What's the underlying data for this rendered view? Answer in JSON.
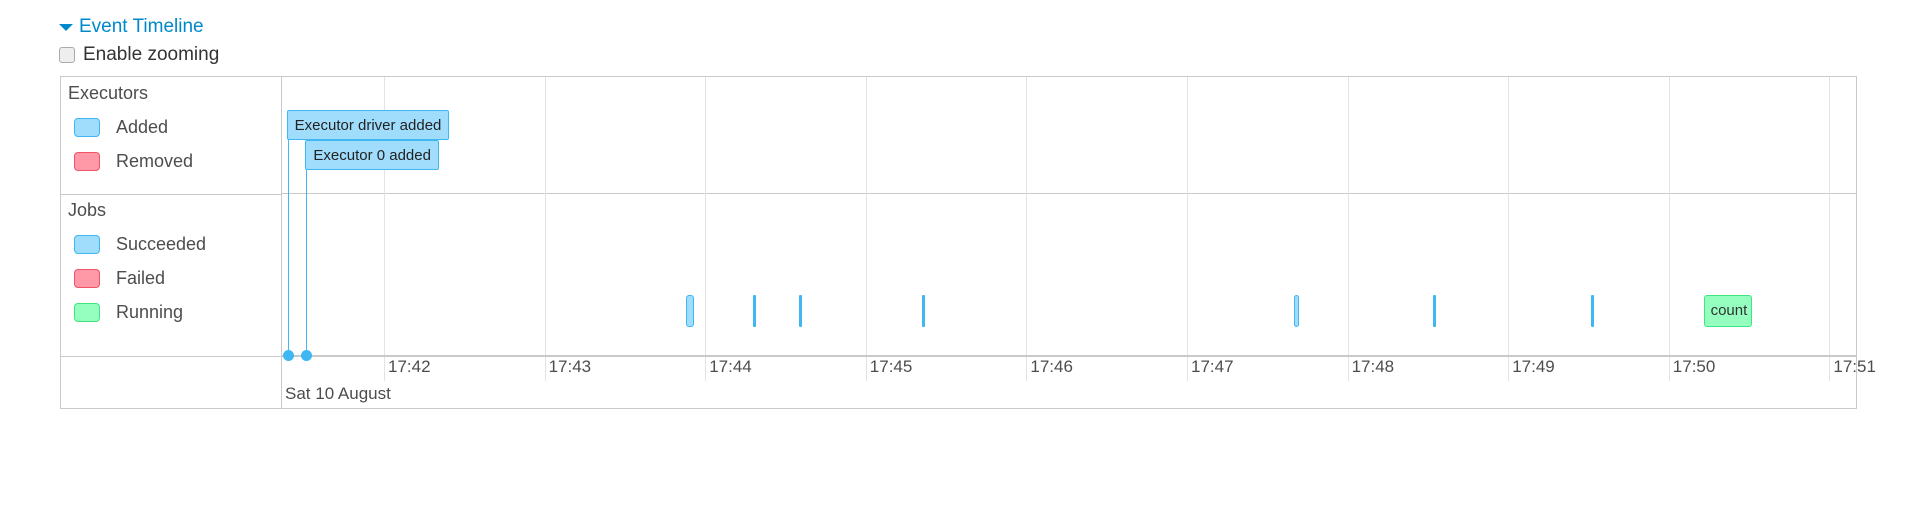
{
  "header": {
    "title": "Event Timeline",
    "zoom_label": "Enable zooming",
    "zoom_checked": false
  },
  "colors": {
    "added": "#a0dcfc",
    "removed": "#ff99a8",
    "succeeded": "#a0dcfc",
    "failed": "#ff99a8",
    "running": "#95ffc0",
    "link": "#0088cc"
  },
  "groups": {
    "executors": {
      "label": "Executors",
      "legend": [
        "Added",
        "Removed"
      ]
    },
    "jobs": {
      "label": "Jobs",
      "legend": [
        "Succeeded",
        "Failed",
        "Running"
      ]
    }
  },
  "axis": {
    "ticks": [
      "17:42",
      "17:43",
      "17:44",
      "17:45",
      "17:46",
      "17:47",
      "17:48",
      "17:49",
      "17:50",
      "17:51"
    ],
    "date_label": "Sat 10 August"
  },
  "chart_data": {
    "type": "timeline",
    "executor_events": [
      {
        "label": "Executor driver added",
        "time": "17:41:24",
        "status": "added"
      },
      {
        "label": "Executor 0 added",
        "time": "17:41:31",
        "status": "added"
      }
    ],
    "jobs": [
      {
        "start": "17:43:53",
        "end": "17:43:56",
        "status": "succeeded",
        "label": ""
      },
      {
        "start": "17:44:18",
        "end": "17:44:18",
        "status": "succeeded",
        "label": ""
      },
      {
        "start": "17:44:35",
        "end": "17:44:35",
        "status": "succeeded",
        "label": ""
      },
      {
        "start": "17:45:21",
        "end": "17:45:21",
        "status": "succeeded",
        "label": ""
      },
      {
        "start": "17:47:40",
        "end": "17:47:42",
        "status": "succeeded",
        "label": ""
      },
      {
        "start": "17:48:32",
        "end": "17:48:32",
        "status": "succeeded",
        "label": ""
      },
      {
        "start": "17:49:31",
        "end": "17:49:31",
        "status": "succeeded",
        "label": ""
      },
      {
        "start": "17:50:13",
        "end": "17:50:31",
        "status": "running",
        "label": "count"
      }
    ]
  }
}
